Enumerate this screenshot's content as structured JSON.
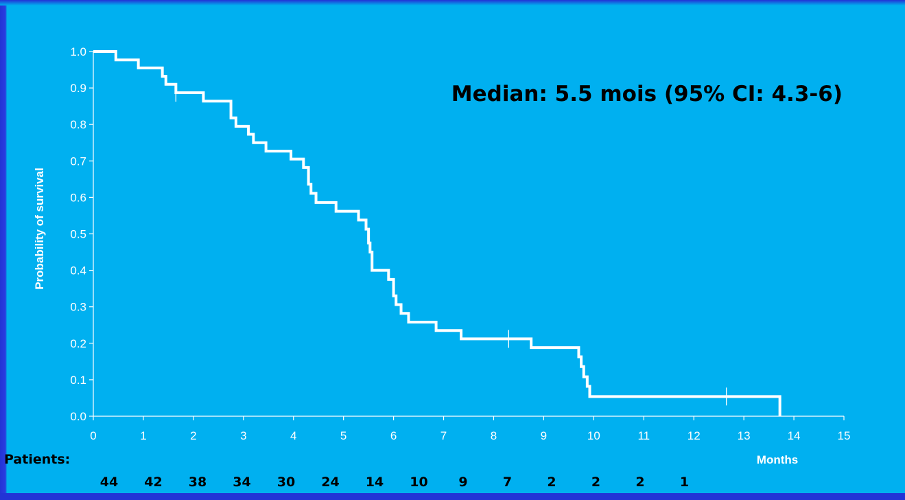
{
  "chart_data": {
    "type": "line",
    "subtype": "kaplan-meier-step",
    "annotation": "Median: 5.5 mois (95% CI: 4.3-6)",
    "xlabel": "Months",
    "ylabel": "Probability of survival",
    "xlim": [
      0,
      15
    ],
    "ylim": [
      0,
      1
    ],
    "x_ticks": [
      "0",
      "1",
      "2",
      "3",
      "4",
      "5",
      "6",
      "7",
      "8",
      "9",
      "10",
      "11",
      "12",
      "13",
      "14",
      "15"
    ],
    "y_ticks": [
      "0.0",
      "0.1",
      "0.2",
      "0.3",
      "0.4",
      "0.5",
      "0.6",
      "0.7",
      "0.8",
      "0.9",
      "1.0"
    ],
    "grid": false,
    "line_color": "#ffffff",
    "series": [
      {
        "steps": [
          [
            0,
            1.0
          ],
          [
            0.45,
            0.977
          ],
          [
            0.9,
            0.955
          ],
          [
            1.38,
            0.932
          ],
          [
            1.45,
            0.91
          ],
          [
            1.65,
            0.887
          ],
          [
            2.2,
            0.864
          ],
          [
            2.75,
            0.818
          ],
          [
            2.85,
            0.795
          ],
          [
            3.1,
            0.773
          ],
          [
            3.2,
            0.75
          ],
          [
            3.45,
            0.727
          ],
          [
            3.95,
            0.705
          ],
          [
            4.2,
            0.682
          ],
          [
            4.3,
            0.636
          ],
          [
            4.35,
            0.611
          ],
          [
            4.45,
            0.586
          ],
          [
            4.85,
            0.562
          ],
          [
            5.3,
            0.538
          ],
          [
            5.45,
            0.513
          ],
          [
            5.5,
            0.475
          ],
          [
            5.53,
            0.45
          ],
          [
            5.57,
            0.4
          ],
          [
            5.9,
            0.375
          ],
          [
            6.0,
            0.33
          ],
          [
            6.05,
            0.306
          ],
          [
            6.15,
            0.282
          ],
          [
            6.3,
            0.258
          ],
          [
            6.85,
            0.235
          ],
          [
            7.35,
            0.212
          ],
          [
            8.75,
            0.188
          ],
          [
            9.7,
            0.163
          ],
          [
            9.75,
            0.136
          ],
          [
            9.8,
            0.108
          ],
          [
            9.87,
            0.082
          ],
          [
            9.92,
            0.054
          ],
          [
            13.72,
            0.0
          ]
        ],
        "censored": [
          [
            1.65,
            0.887
          ],
          [
            8.3,
            0.212
          ],
          [
            12.65,
            0.054
          ]
        ]
      }
    ],
    "risk_table": {
      "label": "Patients:",
      "values": [
        "44",
        "42",
        "38",
        "34",
        "30",
        "24",
        "14",
        "10",
        "9",
        "7",
        "2",
        "2",
        "2",
        "1"
      ]
    }
  }
}
